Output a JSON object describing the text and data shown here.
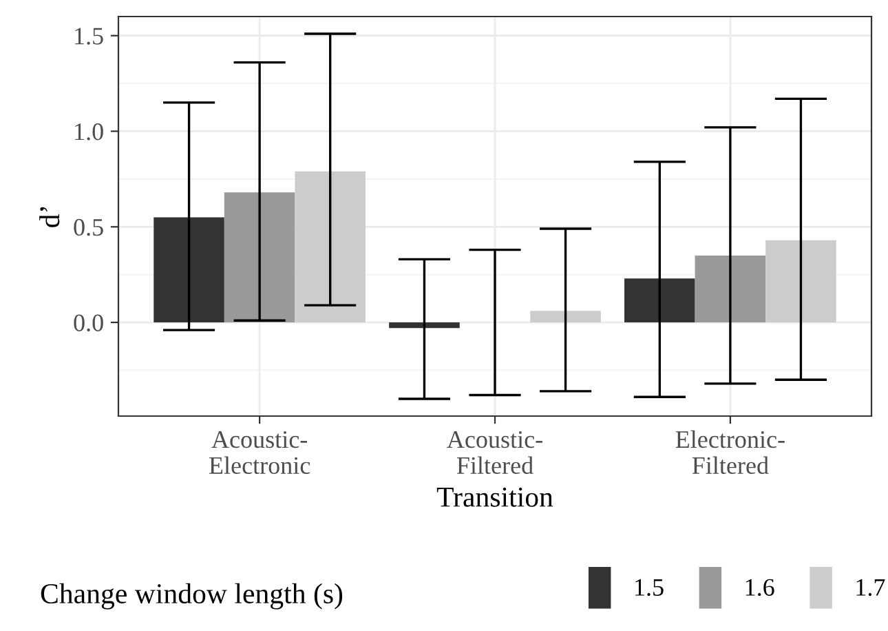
{
  "chart_data": {
    "type": "bar",
    "xlabel": "Transition",
    "ylabel": "d’",
    "legend_title": "Change window length (s)",
    "categories": [
      "Acoustic-\nElectronic",
      "Acoustic-\nFiltered",
      "Electronic-\nFiltered"
    ],
    "series": [
      {
        "name": "1.5",
        "color": "#333333",
        "values": [
          0.55,
          -0.03,
          0.23
        ],
        "errors": [
          [
            -0.04,
            1.15
          ],
          [
            -0.4,
            0.33
          ],
          [
            -0.39,
            0.84
          ]
        ]
      },
      {
        "name": "1.6",
        "color": "#999999",
        "values": [
          0.68,
          0.0,
          0.35
        ],
        "errors": [
          [
            0.01,
            1.36
          ],
          [
            -0.38,
            0.38
          ],
          [
            -0.32,
            1.02
          ]
        ]
      },
      {
        "name": "1.7",
        "color": "#cccccc",
        "values": [
          0.79,
          0.06,
          0.43
        ],
        "errors": [
          [
            0.09,
            1.51
          ],
          [
            -0.36,
            0.49
          ],
          [
            -0.3,
            1.17
          ]
        ]
      }
    ],
    "ylim": [
      -0.49,
      1.6
    ],
    "yticks": [
      {
        "value": 0,
        "label": "0.0"
      },
      0.5,
      {
        "value": 1,
        "label": "1.0"
      },
      1.5
    ],
    "grid": true,
    "legend": "bottom"
  }
}
